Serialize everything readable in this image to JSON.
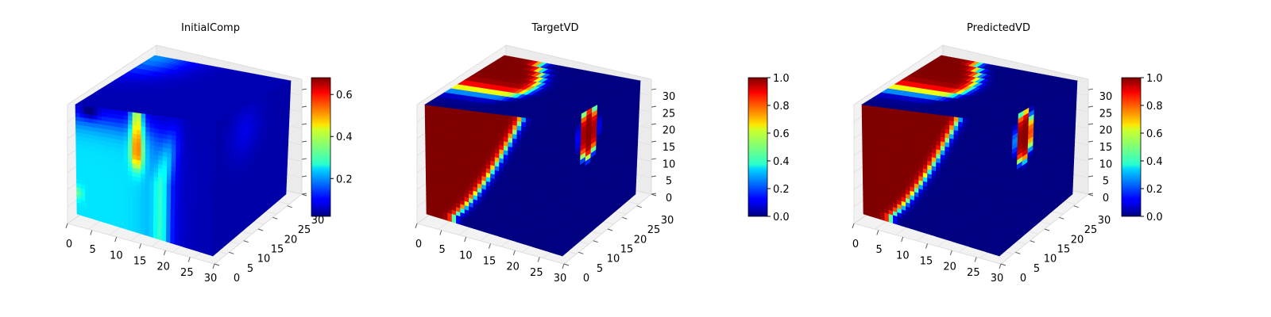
{
  "chart_data": [
    {
      "type": "heatmap",
      "title": "InitialComp",
      "x_ticks": [
        "0",
        "5",
        "10",
        "15",
        "20",
        "25",
        "30"
      ],
      "y_ticks": [
        "0",
        "5",
        "10",
        "15",
        "20",
        "25",
        "30"
      ],
      "z_ticks": [],
      "xlim": [
        0,
        32
      ],
      "ylim": [
        0,
        32
      ],
      "zlim": [
        0,
        32
      ],
      "colorbar": {
        "range": [
          0.02,
          0.68
        ],
        "ticks": [
          "0.2",
          "0.4",
          "0.6"
        ],
        "tick_values": [
          0.2,
          0.4,
          0.6
        ]
      },
      "colormap": "jet"
    },
    {
      "type": "heatmap",
      "title": "TargetVD",
      "x_ticks": [
        "0",
        "5",
        "10",
        "15",
        "20",
        "25",
        "30"
      ],
      "y_ticks": [
        "0",
        "5",
        "10",
        "15",
        "20",
        "25",
        "30"
      ],
      "z_ticks": [
        "0",
        "5",
        "10",
        "15",
        "20",
        "25",
        "30"
      ],
      "xlim": [
        0,
        32
      ],
      "ylim": [
        0,
        32
      ],
      "zlim": [
        0,
        32
      ],
      "colorbar": {
        "range": [
          0.0,
          1.0
        ],
        "ticks": [
          "0.0",
          "0.2",
          "0.4",
          "0.6",
          "0.8",
          "1.0"
        ],
        "tick_values": [
          0.0,
          0.2,
          0.4,
          0.6,
          0.8,
          1.0
        ]
      },
      "colormap": "jet"
    },
    {
      "type": "heatmap",
      "title": "PredictedVD",
      "x_ticks": [
        "0",
        "5",
        "10",
        "15",
        "20",
        "25",
        "30"
      ],
      "y_ticks": [
        "0",
        "5",
        "10",
        "15",
        "20",
        "25",
        "30"
      ],
      "z_ticks": [
        "0",
        "5",
        "10",
        "15",
        "20",
        "25",
        "30"
      ],
      "xlim": [
        0,
        32
      ],
      "ylim": [
        0,
        32
      ],
      "zlim": [
        0,
        32
      ],
      "colorbar": {
        "range": [
          0.0,
          1.0
        ],
        "ticks": [
          "0.0",
          "0.2",
          "0.4",
          "0.6",
          "0.8",
          "1.0"
        ],
        "tick_values": [
          0.0,
          0.2,
          0.4,
          0.6,
          0.8,
          1.0
        ]
      },
      "colormap": "jet"
    }
  ]
}
